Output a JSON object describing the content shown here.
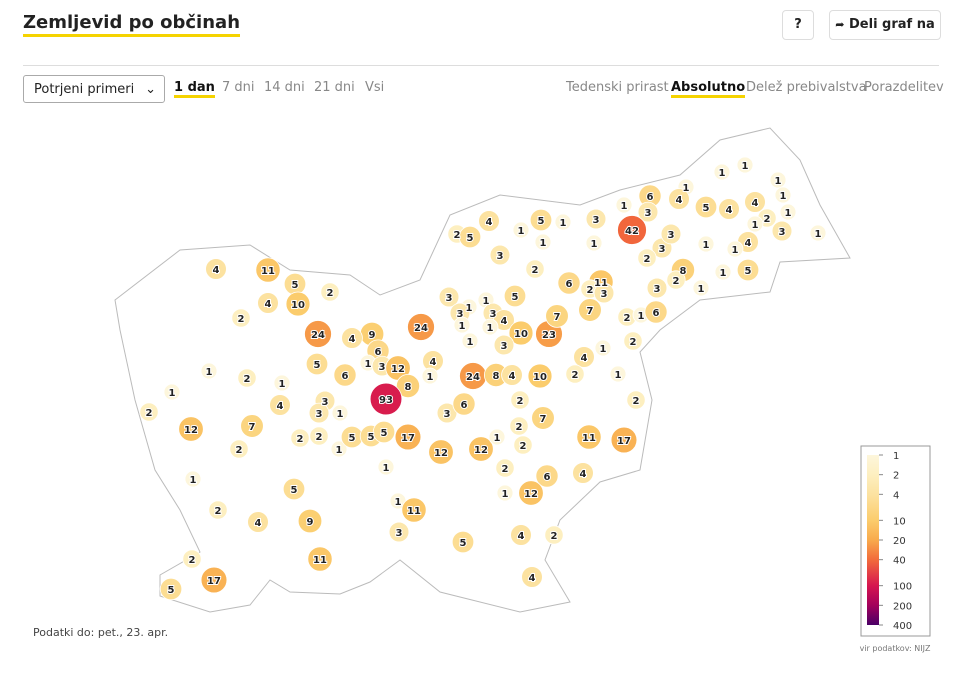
{
  "header": {
    "title": "Zemljevid po občinah",
    "help_button": "?",
    "share_button": "Deli graf na"
  },
  "controls": {
    "select": "Potrjeni primeri",
    "periods": [
      "1 dan",
      "7 dni",
      "14 dni",
      "21 dni",
      "Vsi"
    ],
    "active_period": 0,
    "modes": [
      "Tedenski prirast",
      "Absolutno",
      "Delež prebivalstva",
      "Porazdelitev"
    ],
    "active_mode": 1
  },
  "map": {
    "values": [
      1,
      1,
      1,
      6,
      1,
      3,
      1,
      4,
      5,
      4,
      4,
      1,
      2,
      1,
      1,
      4,
      3,
      1,
      42,
      3,
      3,
      3,
      1,
      1,
      2,
      8,
      2,
      1,
      1,
      5,
      1,
      4,
      5,
      1,
      1,
      1,
      2,
      5,
      3,
      2,
      11,
      6,
      2,
      3,
      3,
      4,
      11,
      5,
      2,
      4,
      10,
      2,
      24,
      9,
      24,
      3,
      1,
      3,
      1,
      5,
      3,
      4,
      1,
      1,
      10,
      23,
      7,
      7,
      2,
      1,
      6,
      4,
      6,
      1,
      3,
      12,
      4,
      1,
      3,
      1,
      4,
      2,
      1,
      2,
      1,
      5,
      6,
      8,
      1,
      24,
      8,
      4,
      10,
      2,
      1,
      1,
      2,
      12,
      7,
      4,
      3,
      3,
      1,
      93,
      3,
      6,
      2,
      7,
      2,
      2,
      2,
      1,
      5,
      5,
      5,
      17,
      12,
      12,
      1,
      2,
      2,
      11,
      17,
      2,
      1,
      1,
      2,
      6,
      4,
      5,
      1,
      11,
      12,
      1,
      2,
      4,
      9,
      3,
      4,
      2,
      5,
      11,
      2,
      17,
      5,
      4
    ],
    "log_scale": true,
    "legend": {
      "ticks": [
        1,
        2,
        4,
        10,
        20,
        40,
        100,
        200,
        400
      ],
      "colors": [
        "#fdf6dc",
        "#fdefc0",
        "#fce2a0",
        "#fbcc6c",
        "#f8aa4c",
        "#f26b3b",
        "#d6154f",
        "#a3005b",
        "#4a0066"
      ]
    },
    "source": "vir podatkov: NIJZ"
  },
  "footer": {
    "note": "Podatki do: pet., 23. apr."
  }
}
